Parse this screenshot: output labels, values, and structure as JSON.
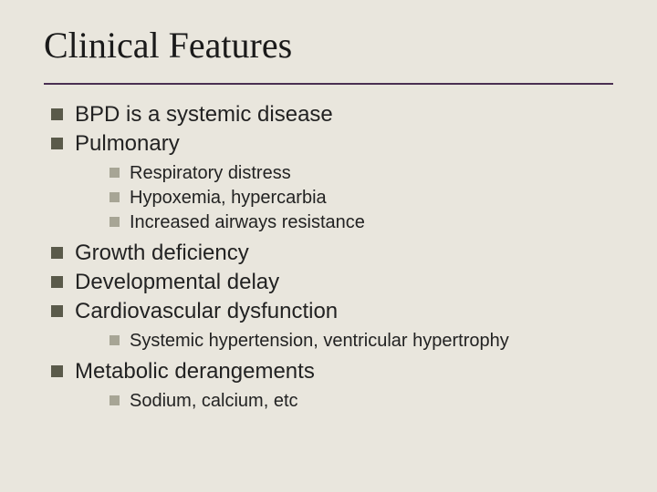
{
  "title": "Clinical Features",
  "colors": {
    "background": "#e9e6dd",
    "title_text": "#1a1a1a",
    "rule": "#4a2f52",
    "bullet_lvl1": "#5a5a4a",
    "bullet_lvl2": "#a7a595",
    "body_text": "#222222"
  },
  "typography": {
    "title_font_family": "Times New Roman",
    "title_font_size_pt": 30,
    "body_font_family": "Arial",
    "lvl1_font_size_pt": 18,
    "lvl2_font_size_pt": 15
  },
  "bullets": [
    {
      "text": "BPD is a systemic disease"
    },
    {
      "text": "Pulmonary",
      "children": [
        {
          "text": "Respiratory distress"
        },
        {
          "text": "Hypoxemia, hypercarbia"
        },
        {
          "text": "Increased airways resistance"
        }
      ]
    },
    {
      "text": "Growth deficiency"
    },
    {
      "text": "Developmental delay"
    },
    {
      "text": "Cardiovascular dysfunction",
      "children": [
        {
          "text": "Systemic hypertension, ventricular hypertrophy"
        }
      ]
    },
    {
      "text": "Metabolic derangements",
      "children": [
        {
          "text": "Sodium, calcium, etc"
        }
      ]
    }
  ]
}
